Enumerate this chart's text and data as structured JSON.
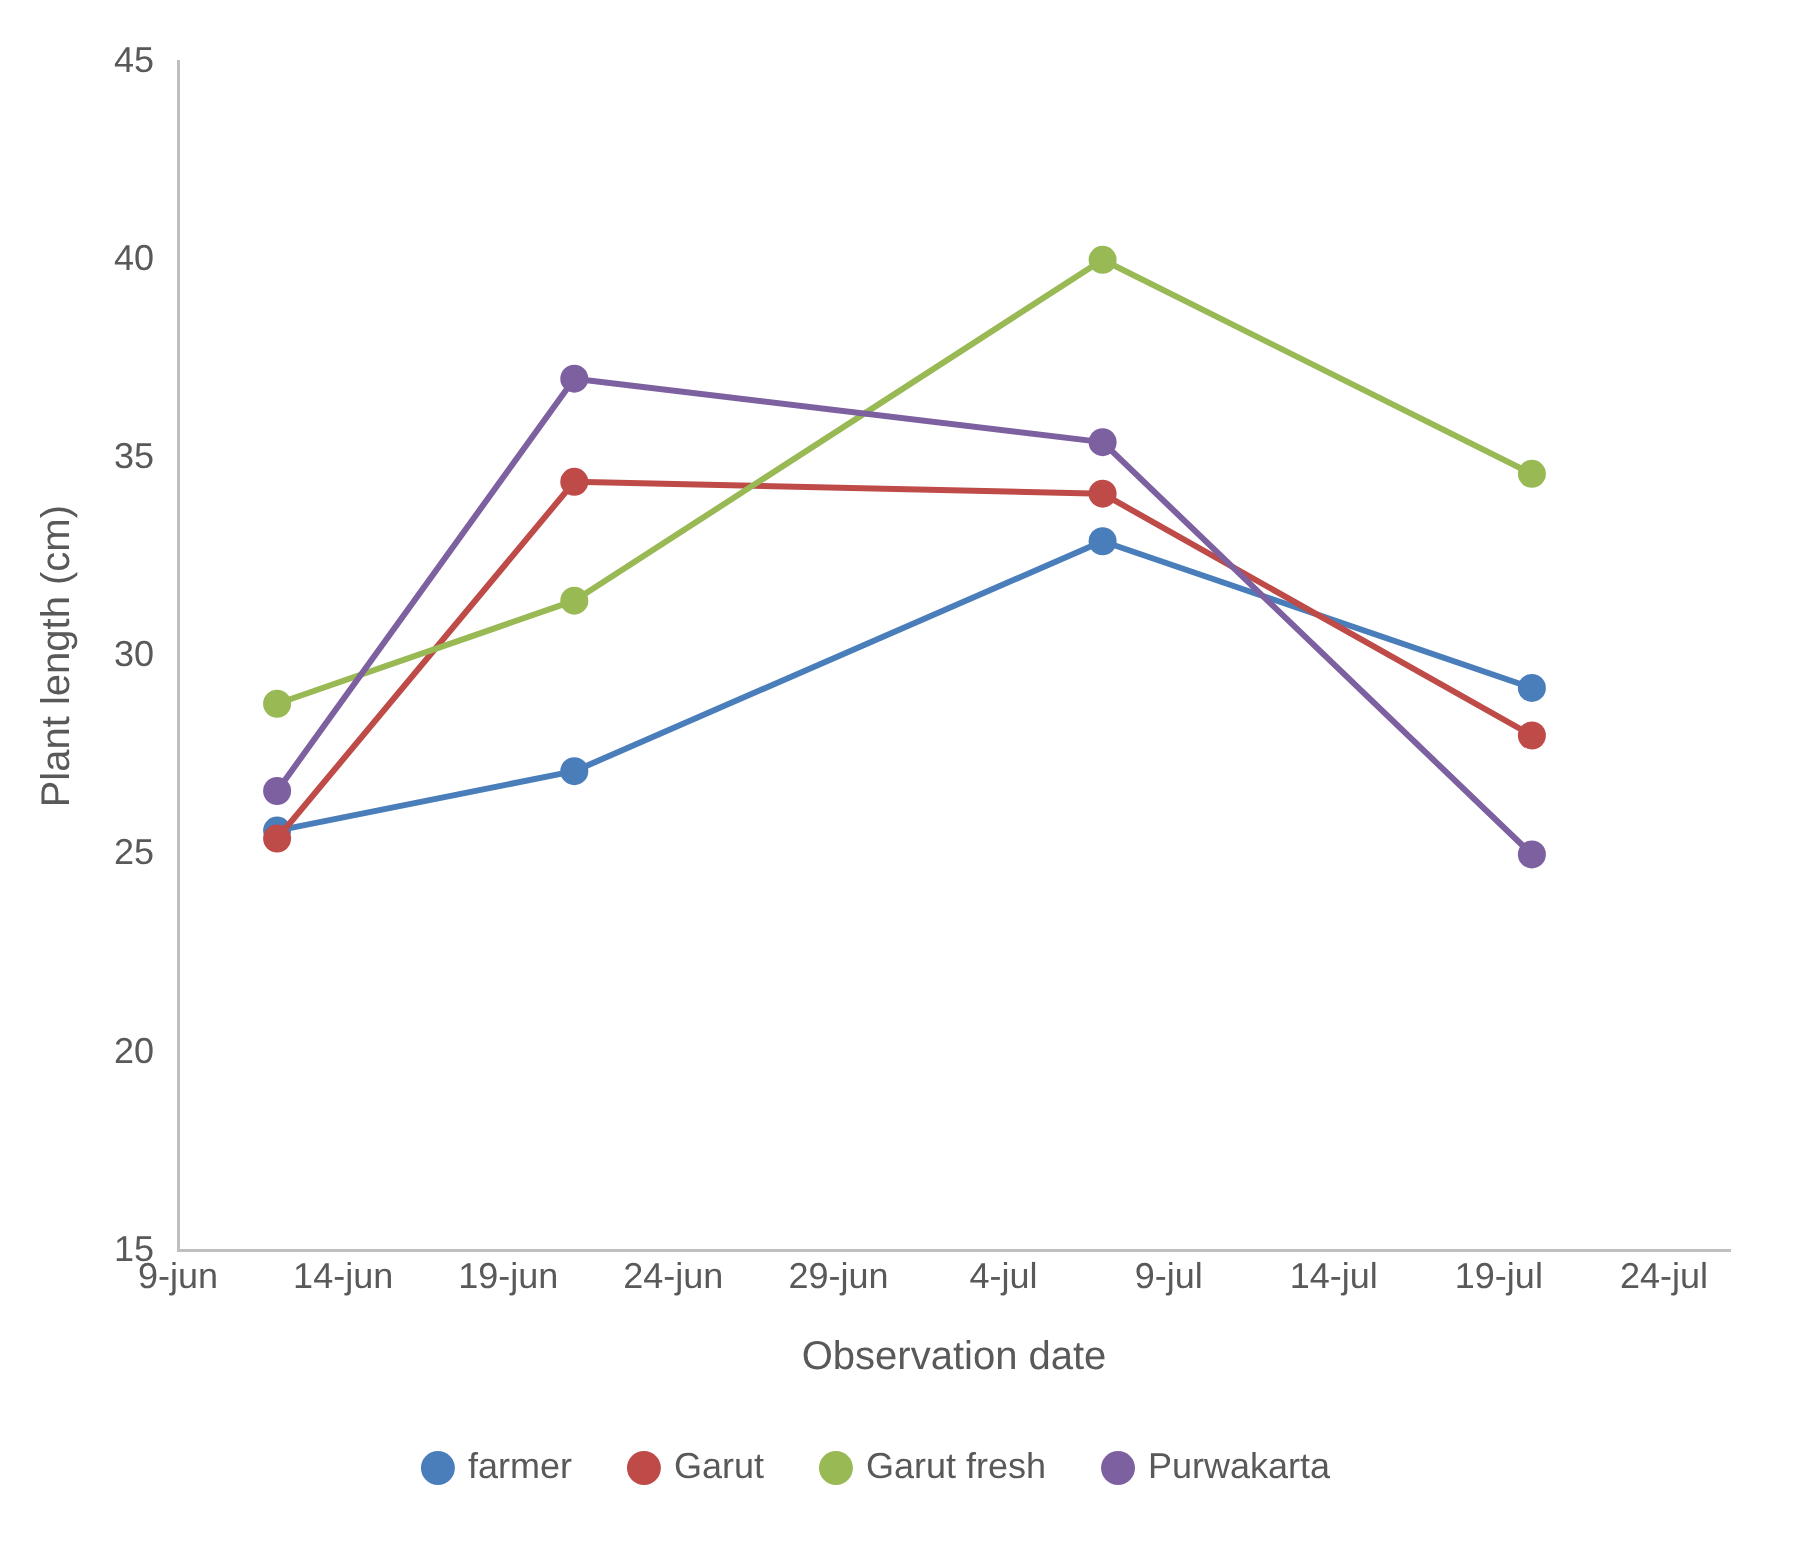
{
  "chart_data": {
    "type": "line",
    "xlabel": "Observation date",
    "ylabel": "Plant length (cm)",
    "x": [
      "--06-12",
      "--06-21",
      "--07-07",
      "--07-20"
    ],
    "xlim": [
      "--06-09",
      "--07-26"
    ],
    "xticks": [
      {
        "value": "--06-09",
        "label": "9-jun"
      },
      {
        "value": "--06-14",
        "label": "14-jun"
      },
      {
        "value": "--06-19",
        "label": "19-jun"
      },
      {
        "value": "--06-24",
        "label": "24-jun"
      },
      {
        "value": "--06-29",
        "label": "29-jun"
      },
      {
        "value": "--07-04",
        "label": "4-jul"
      },
      {
        "value": "--07-09",
        "label": "9-jul"
      },
      {
        "value": "--07-14",
        "label": "14-jul"
      },
      {
        "value": "--07-19",
        "label": "19-jul"
      },
      {
        "value": "--07-24",
        "label": "24-jul"
      }
    ],
    "ylim": [
      15,
      45
    ],
    "yticks": [
      15,
      20,
      25,
      30,
      35,
      40,
      45
    ],
    "grid": false,
    "legend": "bottom",
    "marker": "circle",
    "line_style": "solid",
    "series": [
      {
        "name": "farmer",
        "color": "#4a7ebb",
        "values": [
          25.6,
          27.1,
          32.9,
          29.2
        ]
      },
      {
        "name": "Garut",
        "color": "#be4b48",
        "values": [
          25.4,
          34.4,
          34.1,
          28.0
        ]
      },
      {
        "name": "Garut fresh",
        "color": "#98b954",
        "values": [
          28.8,
          31.4,
          40.0,
          34.6
        ]
      },
      {
        "name": "Purwakarta",
        "color": "#7d60a0",
        "values": [
          26.6,
          37.0,
          35.4,
          25.0
        ]
      }
    ]
  }
}
